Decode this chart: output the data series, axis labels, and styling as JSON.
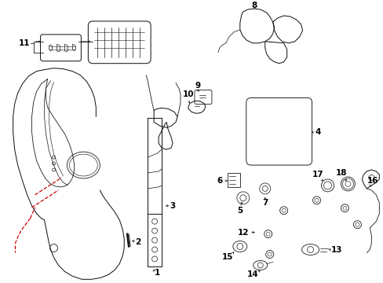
{
  "bg_color": "#ffffff",
  "line_color": "#1a1a1a",
  "red_color": "#cc0000",
  "figsize": [
    4.89,
    3.6
  ],
  "dpi": 100,
  "lw": 0.75
}
